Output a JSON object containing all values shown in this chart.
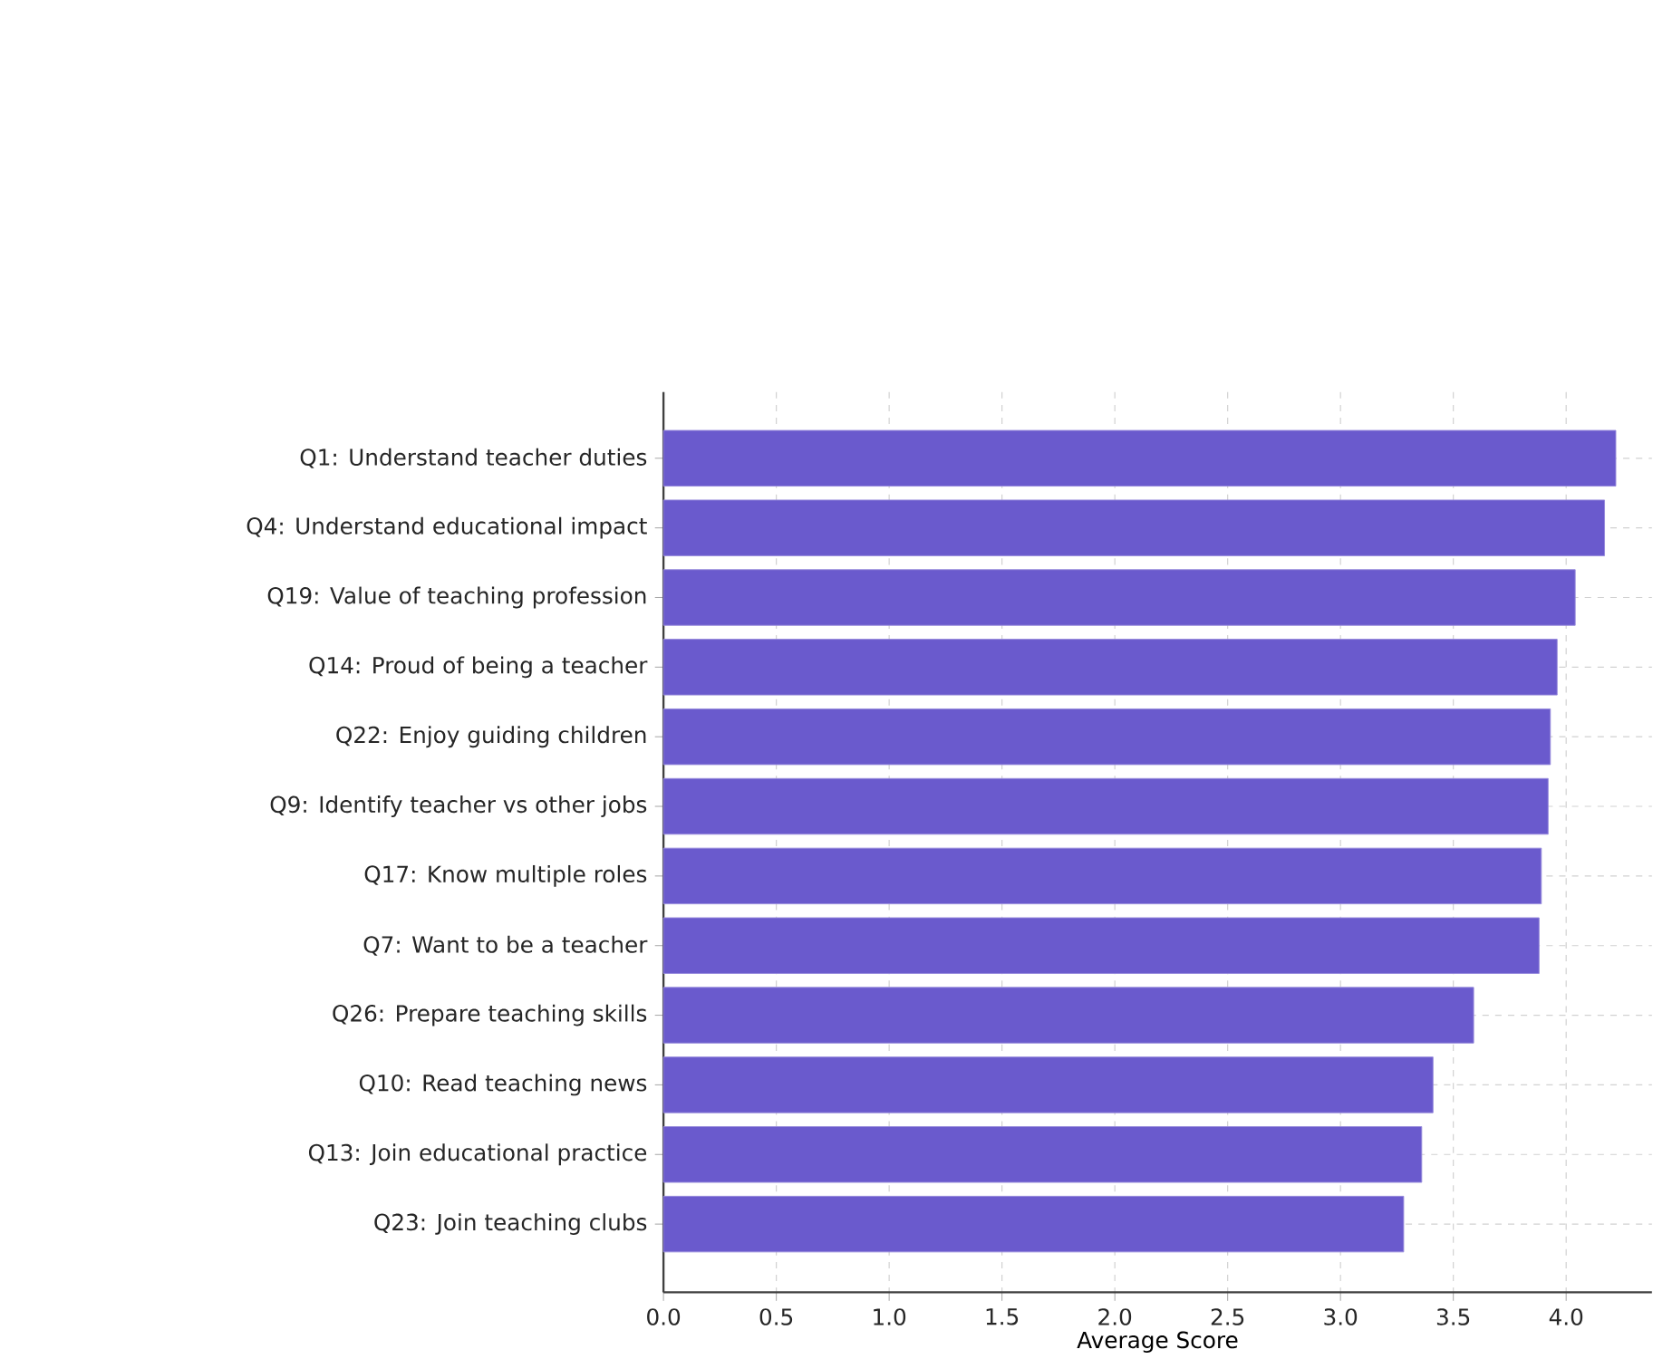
{
  "chart_data": {
    "type": "bar",
    "orientation": "horizontal",
    "xlabel": "Average Score",
    "categories": [
      "Q1: Understand teacher duties",
      "Q4: Understand educational impact",
      "Q19: Value of teaching profession",
      "Q14: Proud of being a teacher",
      "Q22: Enjoy guiding children",
      "Q9: Identify teacher vs other jobs",
      "Q17: Know multiple roles",
      "Q7: Want to be a teacher",
      "Q26: Prepare teaching skills",
      "Q10: Read teaching news",
      "Q13: Join educational practice",
      "Q23: Join teaching clubs"
    ],
    "values": [
      4.22,
      4.17,
      4.04,
      3.96,
      3.93,
      3.92,
      3.89,
      3.88,
      3.59,
      3.41,
      3.36,
      3.28
    ],
    "color": "#6a5acd",
    "xlim": [
      0,
      4.38
    ],
    "xticks": [
      {
        "value": 0,
        "label": "0.0"
      },
      0.5,
      {
        "value": 1,
        "label": "1.0"
      },
      1.5,
      {
        "value": 2,
        "label": "2.0"
      },
      2.5,
      {
        "value": 3,
        "label": "3.0"
      },
      3.5,
      {
        "value": 4,
        "label": "4.0"
      }
    ],
    "grid": true
  }
}
